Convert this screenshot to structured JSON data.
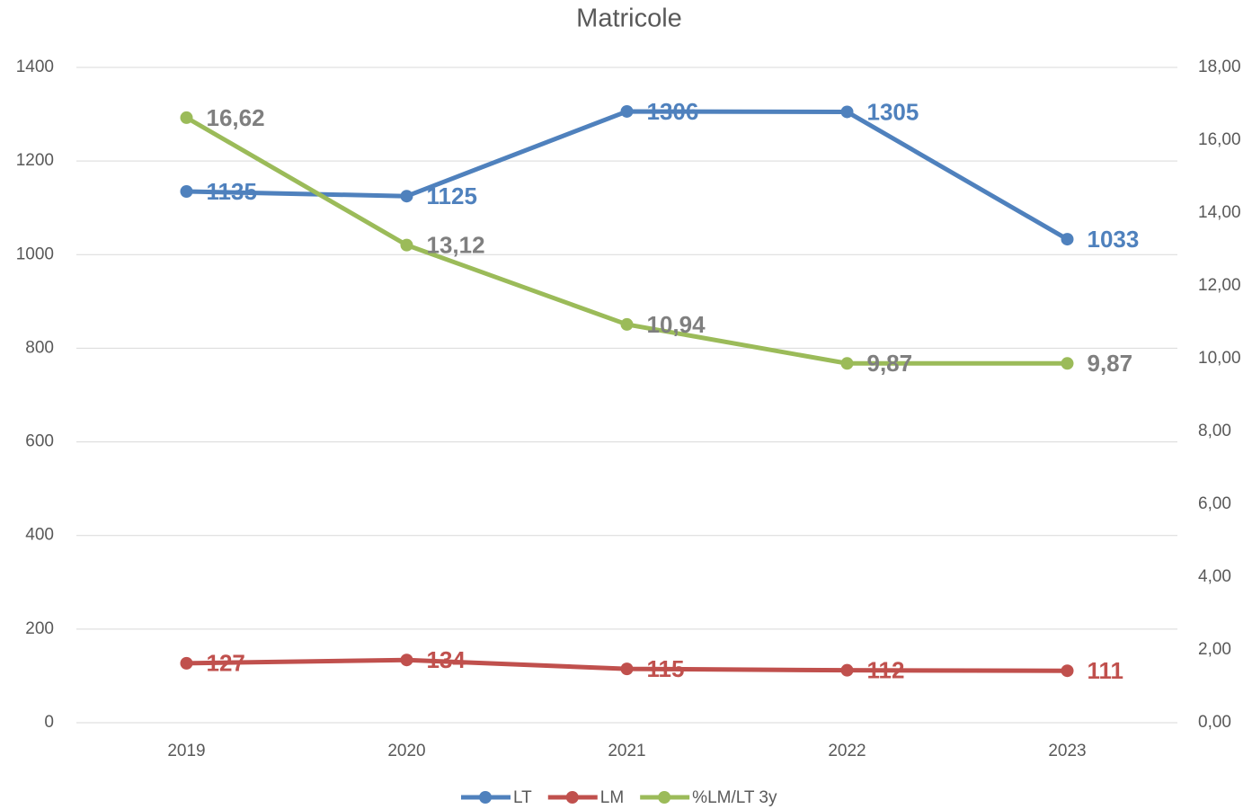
{
  "chart_data": {
    "type": "line",
    "title": "Matricole",
    "categories": [
      "2019",
      "2020",
      "2021",
      "2022",
      "2023"
    ],
    "series": [
      {
        "name": "LT",
        "color": "#4f81bd",
        "label_color": "#4f81bd",
        "values": [
          1135,
          1125,
          1306,
          1305,
          1033
        ]
      },
      {
        "name": "LM",
        "color": "#c0504d",
        "label_color": "#c0504d",
        "values": [
          127,
          134,
          115,
          112,
          111
        ]
      },
      {
        "name": "%LM/LT 3y",
        "color": "#9bbb59",
        "label_color": "#7f7f7f",
        "axis": "y2",
        "values": [
          16.62,
          13.12,
          10.94,
          9.87,
          9.87
        ],
        "value_labels": [
          "16,62",
          "13,12",
          "10,94",
          "9,87",
          "9,87"
        ]
      }
    ],
    "ylim": [
      0,
      1400
    ],
    "yticks": [
      0,
      200,
      400,
      600,
      800,
      1000,
      1200,
      1400
    ],
    "y2lim": [
      0,
      18
    ],
    "y2ticks": [
      {
        "value": 0,
        "label": "0,00"
      },
      {
        "value": 2,
        "label": "2,00"
      },
      {
        "value": 4,
        "label": "4,00"
      },
      {
        "value": 6,
        "label": "6,00"
      },
      {
        "value": 8,
        "label": "8,00"
      },
      {
        "value": 10,
        "label": "10,00"
      },
      {
        "value": 12,
        "label": "12,00"
      },
      {
        "value": 14,
        "label": "14,00"
      },
      {
        "value": 16,
        "label": "16,00"
      },
      {
        "value": 18,
        "label": "18,00"
      }
    ],
    "grid": true,
    "legend": "bottom"
  }
}
